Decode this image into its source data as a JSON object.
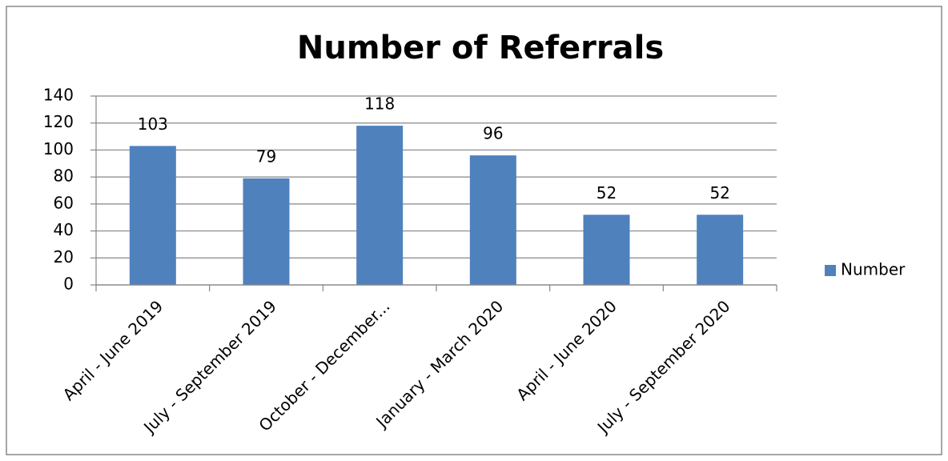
{
  "chart_data": {
    "type": "bar",
    "title": "Number of Referrals",
    "categories": [
      "April - June 2019",
      "July - September 2019",
      "October - December...",
      "January - March 2020",
      "April - June 2020",
      "July - September 2020"
    ],
    "series": [
      {
        "name": "Number",
        "color": "#4f81bd",
        "values": [
          103,
          79,
          118,
          96,
          52,
          52
        ]
      }
    ],
    "ylim": [
      0,
      140
    ],
    "yticks": [
      0,
      20,
      40,
      60,
      80,
      100,
      120,
      140
    ],
    "grid": true,
    "legend": "right"
  }
}
